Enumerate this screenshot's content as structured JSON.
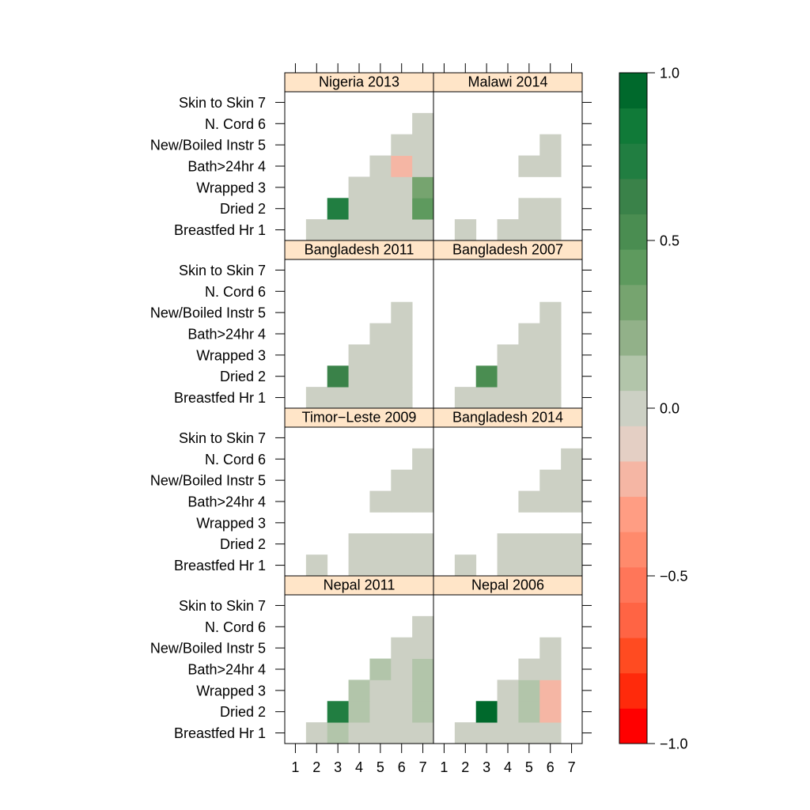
{
  "chart_data": {
    "type": "heatmap",
    "title": "",
    "xlabel": "",
    "ylabel": "",
    "x_categories": [
      "1",
      "2",
      "3",
      "4",
      "5",
      "6",
      "7"
    ],
    "y_categories": [
      "Breastfed Hr 1",
      "Dried 2",
      "Wrapped 3",
      "Bath>24hr 4",
      "New/Boiled Instr 5",
      "N. Cord 6",
      "Skin to Skin 7"
    ],
    "y_tick_labels": [
      "Breastfed Hr 1",
      "Dried 2",
      "Wrapped 3",
      "Bath>24hr 4",
      "New/Boiled Instr 5",
      "N. Cord 6",
      "Skin to Skin 7"
    ],
    "x_tick_labels": [
      "1",
      "2",
      "3",
      "4",
      "5",
      "6",
      "7"
    ],
    "colorbar": {
      "range": [
        -1.0,
        1.0
      ],
      "ticks": [
        1.0,
        0.5,
        0.0,
        -0.5,
        -1.0
      ],
      "tick_labels": [
        "1.0",
        "0.5",
        "0.0",
        "−0.5",
        "−1.0"
      ],
      "colors": [
        "#FF0000",
        "#FF2A0B",
        "#FF4B21",
        "#FF6444",
        "#FF7659",
        "#FF8A6C",
        "#FF9D83",
        "#F5B6A4",
        "#E4CFC4",
        "#CCD0C4",
        "#B2C5AA",
        "#92B189",
        "#76A46F",
        "#5E9A5E",
        "#4A8D51",
        "#3A8249",
        "#217E41",
        "#107A38",
        "#00692C"
      ]
    },
    "panels": [
      {
        "name": "Nigeria 2013",
        "cells": [
          {
            "x": 2,
            "y": 1,
            "v": 0.05
          },
          {
            "x": 3,
            "y": 1,
            "v": 0.05
          },
          {
            "x": 4,
            "y": 1,
            "v": 0.05
          },
          {
            "x": 5,
            "y": 1,
            "v": -0.05
          },
          {
            "x": 6,
            "y": 1,
            "v": -0.05
          },
          {
            "x": 7,
            "y": 1,
            "v": 0.05
          },
          {
            "x": 3,
            "y": 2,
            "v": 0.75
          },
          {
            "x": 4,
            "y": 2,
            "v": 0.05
          },
          {
            "x": 5,
            "y": 2,
            "v": 0.05
          },
          {
            "x": 6,
            "y": 2,
            "v": 0.05
          },
          {
            "x": 7,
            "y": 2,
            "v": 0.45
          },
          {
            "x": 4,
            "y": 3,
            "v": -0.05
          },
          {
            "x": 5,
            "y": 3,
            "v": 0.05
          },
          {
            "x": 6,
            "y": 3,
            "v": -0.05
          },
          {
            "x": 7,
            "y": 3,
            "v": 0.35
          },
          {
            "x": 5,
            "y": 4,
            "v": 0.05
          },
          {
            "x": 6,
            "y": 4,
            "v": -0.2
          },
          {
            "x": 7,
            "y": 4,
            "v": -0.05
          },
          {
            "x": 6,
            "y": 5,
            "v": -0.05
          },
          {
            "x": 7,
            "y": 5,
            "v": 0.05
          },
          {
            "x": 7,
            "y": 6,
            "v": -0.05
          }
        ]
      },
      {
        "name": "Malawi 2014",
        "cells": [
          {
            "x": 2,
            "y": 1,
            "v": 0.05
          },
          {
            "x": 4,
            "y": 1,
            "v": 0.05
          },
          {
            "x": 5,
            "y": 1,
            "v": 0.05
          },
          {
            "x": 6,
            "y": 1,
            "v": -0.05
          },
          {
            "x": 5,
            "y": 2,
            "v": 0.05
          },
          {
            "x": 6,
            "y": 2,
            "v": -0.05
          },
          {
            "x": 5,
            "y": 4,
            "v": 0.05
          },
          {
            "x": 6,
            "y": 4,
            "v": -0.05
          },
          {
            "x": 6,
            "y": 5,
            "v": -0.05
          }
        ]
      },
      {
        "name": "Bangladesh 2011",
        "cells": [
          {
            "x": 2,
            "y": 1,
            "v": 0.05
          },
          {
            "x": 3,
            "y": 1,
            "v": 0.05
          },
          {
            "x": 4,
            "y": 1,
            "v": 0.05
          },
          {
            "x": 5,
            "y": 1,
            "v": 0.05
          },
          {
            "x": 6,
            "y": 1,
            "v": 0.05
          },
          {
            "x": 3,
            "y": 2,
            "v": 0.6
          },
          {
            "x": 4,
            "y": 2,
            "v": 0.05
          },
          {
            "x": 5,
            "y": 2,
            "v": -0.05
          },
          {
            "x": 6,
            "y": 2,
            "v": 0.05
          },
          {
            "x": 4,
            "y": 3,
            "v": -0.05
          },
          {
            "x": 5,
            "y": 3,
            "v": -0.05
          },
          {
            "x": 6,
            "y": 3,
            "v": -0.05
          },
          {
            "x": 5,
            "y": 4,
            "v": 0.05
          },
          {
            "x": 6,
            "y": 4,
            "v": 0.05
          },
          {
            "x": 6,
            "y": 5,
            "v": -0.05
          }
        ]
      },
      {
        "name": "Bangladesh 2007",
        "cells": [
          {
            "x": 2,
            "y": 1,
            "v": -0.05
          },
          {
            "x": 3,
            "y": 1,
            "v": 0.05
          },
          {
            "x": 4,
            "y": 1,
            "v": 0.05
          },
          {
            "x": 5,
            "y": 1,
            "v": -0.05
          },
          {
            "x": 6,
            "y": 1,
            "v": -0.05
          },
          {
            "x": 3,
            "y": 2,
            "v": 0.5
          },
          {
            "x": 4,
            "y": 2,
            "v": 0.05
          },
          {
            "x": 5,
            "y": 2,
            "v": -0.05
          },
          {
            "x": 6,
            "y": 2,
            "v": 0.05
          },
          {
            "x": 4,
            "y": 3,
            "v": 0.05
          },
          {
            "x": 5,
            "y": 3,
            "v": -0.05
          },
          {
            "x": 6,
            "y": 3,
            "v": 0.05
          },
          {
            "x": 5,
            "y": 4,
            "v": 0.05
          },
          {
            "x": 6,
            "y": 4,
            "v": 0.05
          },
          {
            "x": 6,
            "y": 5,
            "v": -0.05
          }
        ]
      },
      {
        "name": "Timor−Leste 2009",
        "cells": [
          {
            "x": 2,
            "y": 1,
            "v": 0.05
          },
          {
            "x": 4,
            "y": 1,
            "v": 0.05
          },
          {
            "x": 5,
            "y": 1,
            "v": -0.05
          },
          {
            "x": 6,
            "y": 1,
            "v": 0.05
          },
          {
            "x": 7,
            "y": 1,
            "v": -0.05
          },
          {
            "x": 4,
            "y": 2,
            "v": -0.05
          },
          {
            "x": 5,
            "y": 2,
            "v": -0.05
          },
          {
            "x": 6,
            "y": 2,
            "v": 0.05
          },
          {
            "x": 7,
            "y": 2,
            "v": 0.05
          },
          {
            "x": 5,
            "y": 4,
            "v": 0.05
          },
          {
            "x": 6,
            "y": 4,
            "v": 0.05
          },
          {
            "x": 7,
            "y": 4,
            "v": 0.05
          },
          {
            "x": 6,
            "y": 5,
            "v": -0.05
          },
          {
            "x": 7,
            "y": 5,
            "v": 0.05
          },
          {
            "x": 7,
            "y": 6,
            "v": -0.05
          }
        ]
      },
      {
        "name": "Bangladesh 2014",
        "cells": [
          {
            "x": 2,
            "y": 1,
            "v": 0.05
          },
          {
            "x": 4,
            "y": 1,
            "v": 0.05
          },
          {
            "x": 5,
            "y": 1,
            "v": -0.05
          },
          {
            "x": 6,
            "y": 1,
            "v": 0.05
          },
          {
            "x": 7,
            "y": 1,
            "v": -0.05
          },
          {
            "x": 4,
            "y": 2,
            "v": -0.05
          },
          {
            "x": 5,
            "y": 2,
            "v": -0.05
          },
          {
            "x": 6,
            "y": 2,
            "v": 0.05
          },
          {
            "x": 7,
            "y": 2,
            "v": 0.05
          },
          {
            "x": 5,
            "y": 4,
            "v": 0.05
          },
          {
            "x": 6,
            "y": 4,
            "v": 0.05
          },
          {
            "x": 7,
            "y": 4,
            "v": 0.05
          },
          {
            "x": 6,
            "y": 5,
            "v": -0.05
          },
          {
            "x": 7,
            "y": 5,
            "v": 0.05
          },
          {
            "x": 7,
            "y": 6,
            "v": -0.05
          }
        ]
      },
      {
        "name": "Nepal 2011",
        "cells": [
          {
            "x": 2,
            "y": 1,
            "v": 0.05
          },
          {
            "x": 3,
            "y": 1,
            "v": 0.15
          },
          {
            "x": 4,
            "y": 1,
            "v": 0.05
          },
          {
            "x": 5,
            "y": 1,
            "v": 0.05
          },
          {
            "x": 6,
            "y": 1,
            "v": -0.05
          },
          {
            "x": 7,
            "y": 1,
            "v": 0.05
          },
          {
            "x": 3,
            "y": 2,
            "v": 0.75
          },
          {
            "x": 4,
            "y": 2,
            "v": 0.15
          },
          {
            "x": 5,
            "y": 2,
            "v": 0.05
          },
          {
            "x": 6,
            "y": 2,
            "v": -0.05
          },
          {
            "x": 7,
            "y": 2,
            "v": 0.15
          },
          {
            "x": 4,
            "y": 3,
            "v": 0.15
          },
          {
            "x": 5,
            "y": 3,
            "v": 0.05
          },
          {
            "x": 6,
            "y": 3,
            "v": -0.05
          },
          {
            "x": 7,
            "y": 3,
            "v": 0.15
          },
          {
            "x": 5,
            "y": 4,
            "v": 0.15
          },
          {
            "x": 6,
            "y": 4,
            "v": -0.05
          },
          {
            "x": 7,
            "y": 4,
            "v": 0.15
          },
          {
            "x": 6,
            "y": 5,
            "v": 0.05
          },
          {
            "x": 7,
            "y": 5,
            "v": 0.05
          },
          {
            "x": 7,
            "y": 6,
            "v": -0.05
          }
        ]
      },
      {
        "name": "Nepal 2006",
        "cells": [
          {
            "x": 2,
            "y": 1,
            "v": 0.05
          },
          {
            "x": 3,
            "y": 1,
            "v": 0.05
          },
          {
            "x": 4,
            "y": 1,
            "v": 0.05
          },
          {
            "x": 5,
            "y": 1,
            "v": 0.05
          },
          {
            "x": 6,
            "y": 1,
            "v": 0.05
          },
          {
            "x": 3,
            "y": 2,
            "v": 0.95
          },
          {
            "x": 4,
            "y": 2,
            "v": 0.05
          },
          {
            "x": 5,
            "y": 2,
            "v": 0.15
          },
          {
            "x": 6,
            "y": 2,
            "v": -0.2
          },
          {
            "x": 4,
            "y": 3,
            "v": 0.05
          },
          {
            "x": 5,
            "y": 3,
            "v": 0.15
          },
          {
            "x": 6,
            "y": 3,
            "v": -0.2
          },
          {
            "x": 5,
            "y": 4,
            "v": 0.05
          },
          {
            "x": 6,
            "y": 4,
            "v": -0.05
          },
          {
            "x": 6,
            "y": 5,
            "v": -0.05
          }
        ]
      }
    ],
    "strip_color": "#FFE5C8"
  }
}
